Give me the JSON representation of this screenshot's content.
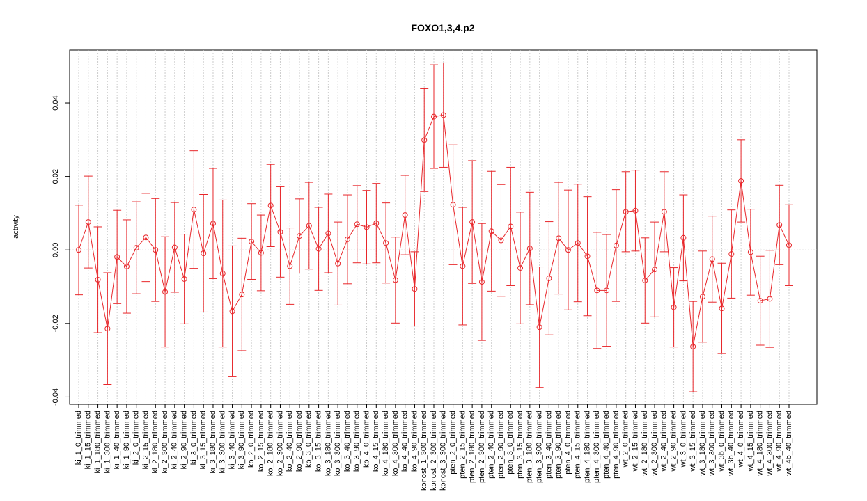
{
  "chart_data": {
    "type": "line",
    "title": "FOXO1,3,4.p2",
    "y_label": "activity",
    "color": "#e8262a",
    "grid": true,
    "ylim": [
      -0.042,
      0.0544
    ],
    "yticks": [
      -0.04,
      -0.02,
      {
        "value": 0,
        "label": "0.00"
      },
      0.02,
      0.04
    ],
    "categories": [
      "ki_1_0_trimmed",
      "ki_1_15_trimmed",
      "ki_1_180_trimmed",
      "ki_1_300_trimmed",
      "ki_1_40_trimmed",
      "ki_1_90_trimmed",
      "ki_2_0_trimmed",
      "ki_2_15_trimmed",
      "ki_2_180_trimmed",
      "ki_2_300_trimmed",
      "ki_2_40_trimmed",
      "ki_2_90_trimmed",
      "ki_3_0_trimmed",
      "ki_3_15_trimmed",
      "ki_3_180_trimmed",
      "ki_3_300_trimmed",
      "ki_3_40_trimmed",
      "ki_3_90_trimmed",
      "ko_2_0_trimmed",
      "ko_2_15_trimmed",
      "ko_2_180_trimmed",
      "ko_2_300_trimmed",
      "ko_2_40_trimmed",
      "ko_2_90_trimmed",
      "ko_3_0_trimmed",
      "ko_3_15_trimmed",
      "ko_3_180_trimmed",
      "ko_3_300_trimmed",
      "ko_3_40_trimmed",
      "ko_3_90_trimmed",
      "ko_4_0_trimmed",
      "ko_4_15_trimmed",
      "ko_4_180_trimmed",
      "ko_4_300_trimmed",
      "ko_4_40_trimmed",
      "ko_4_90_trimmed",
      "konost_1_300_trimmed",
      "konost_2_300_trimmed",
      "konost_3_300_trimmed",
      "pten_2_0_trimmed",
      "pten_2_15_trimmed",
      "pten_2_180_trimmed",
      "pten_2_300_trimmed",
      "pten_2_40_trimmed",
      "pten_2_90_trimmed",
      "pten_3_0_trimmed",
      "pten_3_15_trimmed",
      "pten_3_180_trimmed",
      "pten_3_300_trimmed",
      "pten_3_40_trimmed",
      "pten_3_90_trimmed",
      "pten_4_0_trimmed",
      "pten_4_15_trimmed",
      "pten_4_180_trimmed",
      "pten_4_300_trimmed",
      "pten_4_40_trimmed",
      "pten_4_90_trimmed",
      "wt_2_0_trimmed",
      "wt_2_15_trimmed",
      "wt_2_180_trimmed",
      "wt_2_300_trimmed",
      "wt_2_40_trimmed",
      "wt_2_90_trimmed",
      "wt_3_0_trimmed",
      "wt_3_15_trimmed",
      "wt_3_180_trimmed",
      "wt_3_300_trimmed",
      "wt_3b_0_trimmed",
      "wt_3b_40_trimmed",
      "wt_4_0_trimmed",
      "wt_4_15_trimmed",
      "wt_4_180_trimmed",
      "wt_4_300_trimmed",
      "wt_4_90_trimmed",
      "wt_4b_40_trimmed"
    ],
    "values": [
      0.0,
      0.0076,
      -0.0081,
      -0.0214,
      -0.0019,
      -0.0045,
      0.0006,
      0.0034,
      0.0,
      -0.0114,
      0.0007,
      -0.0079,
      0.011,
      -0.0009,
      0.0072,
      -0.0064,
      -0.0167,
      -0.0121,
      0.0023,
      -0.0008,
      0.0121,
      0.0049,
      -0.0044,
      0.0038,
      0.0066,
      0.0003,
      0.0045,
      -0.0037,
      0.0029,
      0.007,
      0.0062,
      0.0073,
      0.0019,
      -0.0082,
      0.0095,
      -0.0106,
      0.0299,
      0.0363,
      0.0367,
      0.0123,
      -0.0044,
      0.0076,
      -0.0087,
      0.0051,
      0.0026,
      0.0064,
      -0.0049,
      0.0004,
      -0.021,
      -0.0077,
      0.0032,
      0.0,
      0.0019,
      -0.0017,
      -0.011,
      -0.011,
      0.0012,
      0.0104,
      0.0107,
      -0.0083,
      -0.0053,
      0.0104,
      -0.0156,
      0.0033,
      -0.0263,
      -0.0127,
      -0.0025,
      -0.0159,
      -0.0011,
      0.0188,
      -0.0006,
      -0.0138,
      -0.0133,
      0.0068,
      0.0013
    ],
    "errors": [
      0.0122,
      0.0125,
      0.0144,
      0.0152,
      0.0127,
      0.0127,
      0.0125,
      0.012,
      0.014,
      0.015,
      0.0122,
      0.0122,
      0.016,
      0.016,
      0.015,
      0.02,
      0.0178,
      0.0153,
      0.0103,
      0.0103,
      0.0112,
      0.0123,
      0.0104,
      0.0101,
      0.0118,
      0.0113,
      0.0107,
      0.0113,
      0.0121,
      0.0105,
      0.01,
      0.0108,
      0.0109,
      0.0117,
      0.0108,
      0.0101,
      0.014,
      0.0141,
      0.0142,
      0.0163,
      0.016,
      0.0167,
      0.0159,
      0.0163,
      0.0152,
      0.0161,
      0.0152,
      0.0153,
      0.0164,
      0.0154,
      0.0152,
      0.0163,
      0.016,
      0.0162,
      0.0158,
      0.0152,
      0.0152,
      0.0109,
      0.011,
      0.0116,
      0.0129,
      0.0109,
      0.0108,
      0.0117,
      0.0123,
      0.0124,
      0.0117,
      0.0123,
      0.012,
      0.0112,
      0.0117,
      0.0121,
      0.0132,
      0.0108,
      0.011
    ]
  }
}
